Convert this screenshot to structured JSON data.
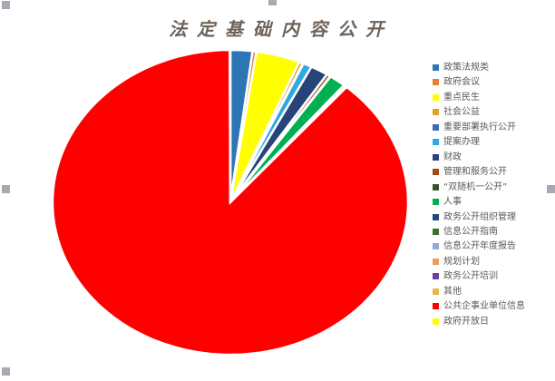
{
  "chart_data": {
    "type": "pie",
    "title": "法定基础内容公开",
    "legend_position": "right",
    "start_angle_deg": 0,
    "direction": "clockwise",
    "categories": [
      "政策法规类",
      "政府会议",
      "重点民生",
      "社会公益",
      "重要部署执行公开",
      "提案办理",
      "财政",
      "管理和服务公开",
      "“双随机一公开”",
      "人事",
      "政务公开组织管理",
      "信息公开指南",
      "信息公开年度报告",
      "规划计划",
      "政务公开培训",
      "其他",
      "公共企事业单位信息",
      "政府开放日"
    ],
    "values": [
      2.0,
      0.35,
      4.0,
      0.35,
      0.05,
      0.8,
      1.6,
      0.35,
      0.05,
      1.5,
      0.05,
      0.05,
      0.05,
      0.05,
      0.05,
      0.05,
      88.6,
      0.05
    ],
    "colors": [
      "#2E75B6",
      "#ED7D31",
      "#FFFF00",
      "#E0A42B",
      "#3B6DB5",
      "#30A8E0",
      "#264478",
      "#9E4B19",
      "#3A5323",
      "#00B050",
      "#234780",
      "#38702C",
      "#8FAADC",
      "#EE9A5C",
      "#6A3FA3",
      "#E5B64B",
      "#FF0000",
      "#FFFF00"
    ]
  },
  "ui": {
    "selection_handle_color": "#A7AAB1",
    "legend_text_color": "#595959",
    "title_color": "#6E635A",
    "background_color": "#FFFFFF"
  }
}
